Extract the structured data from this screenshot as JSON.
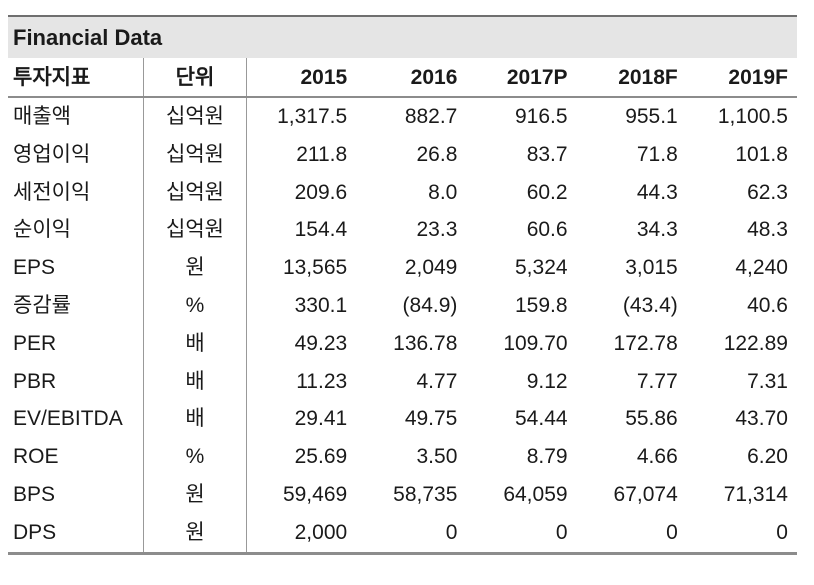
{
  "title": "Financial Data",
  "colors": {
    "title_bar_bg": "#e5e5e5",
    "top_border": "#6f6f6f",
    "rule_border": "#8c8c8c",
    "column_divider": "#999999",
    "text": "#1a1a1a"
  },
  "table": {
    "columns": [
      "투자지표",
      "단위",
      "2015",
      "2016",
      "2017P",
      "2018F",
      "2019F"
    ],
    "rows": [
      {
        "label": "매출액",
        "unit": "십억원",
        "values": [
          "1,317.5",
          "882.7",
          "916.5",
          "955.1",
          "1,100.5"
        ]
      },
      {
        "label": "영업이익",
        "unit": "십억원",
        "values": [
          "211.8",
          "26.8",
          "83.7",
          "71.8",
          "101.8"
        ]
      },
      {
        "label": "세전이익",
        "unit": "십억원",
        "values": [
          "209.6",
          "8.0",
          "60.2",
          "44.3",
          "62.3"
        ]
      },
      {
        "label": "순이익",
        "unit": "십억원",
        "values": [
          "154.4",
          "23.3",
          "60.6",
          "34.3",
          "48.3"
        ]
      },
      {
        "label": "EPS",
        "unit": "원",
        "values": [
          "13,565",
          "2,049",
          "5,324",
          "3,015",
          "4,240"
        ]
      },
      {
        "label": "증감률",
        "unit": "%",
        "values": [
          "330.1",
          "(84.9)",
          "159.8",
          "(43.4)",
          "40.6"
        ]
      },
      {
        "label": "PER",
        "unit": "배",
        "values": [
          "49.23",
          "136.78",
          "109.70",
          "172.78",
          "122.89"
        ]
      },
      {
        "label": "PBR",
        "unit": "배",
        "values": [
          "11.23",
          "4.77",
          "9.12",
          "7.77",
          "7.31"
        ]
      },
      {
        "label": "EV/EBITDA",
        "unit": "배",
        "values": [
          "29.41",
          "49.75",
          "54.44",
          "55.86",
          "43.70"
        ]
      },
      {
        "label": "ROE",
        "unit": "%",
        "values": [
          "25.69",
          "3.50",
          "8.79",
          "4.66",
          "6.20"
        ]
      },
      {
        "label": "BPS",
        "unit": "원",
        "values": [
          "59,469",
          "58,735",
          "64,059",
          "67,074",
          "71,314"
        ]
      },
      {
        "label": "DPS",
        "unit": "원",
        "values": [
          "2,000",
          "0",
          "0",
          "0",
          "0"
        ]
      }
    ]
  }
}
